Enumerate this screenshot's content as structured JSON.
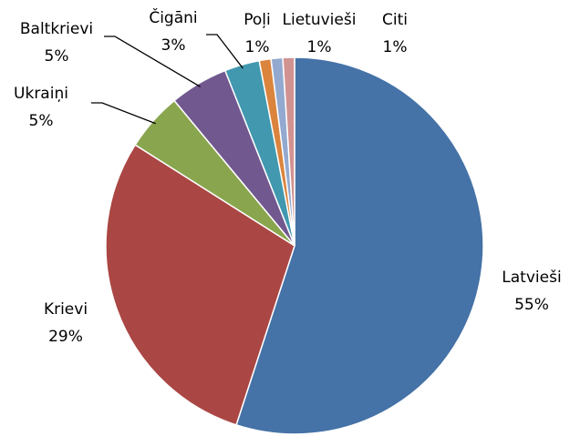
{
  "chart_data": {
    "type": "pie",
    "categories": [
      "Latvieši",
      "Krievi",
      "Ukraiņi",
      "Baltkrievi",
      "Čigāni",
      "Poļi",
      "Lietuvieši",
      "Citi"
    ],
    "values": [
      55,
      29,
      5,
      5,
      3,
      1,
      1,
      1
    ],
    "value_labels": [
      "55%",
      "29%",
      "5%",
      "5%",
      "3%",
      "1%",
      "1%",
      "1%"
    ],
    "colors": [
      "#4572a7",
      "#aa4643",
      "#89a54e",
      "#71588f",
      "#4198af",
      "#db843d",
      "#93a9cf",
      "#d19392"
    ]
  }
}
